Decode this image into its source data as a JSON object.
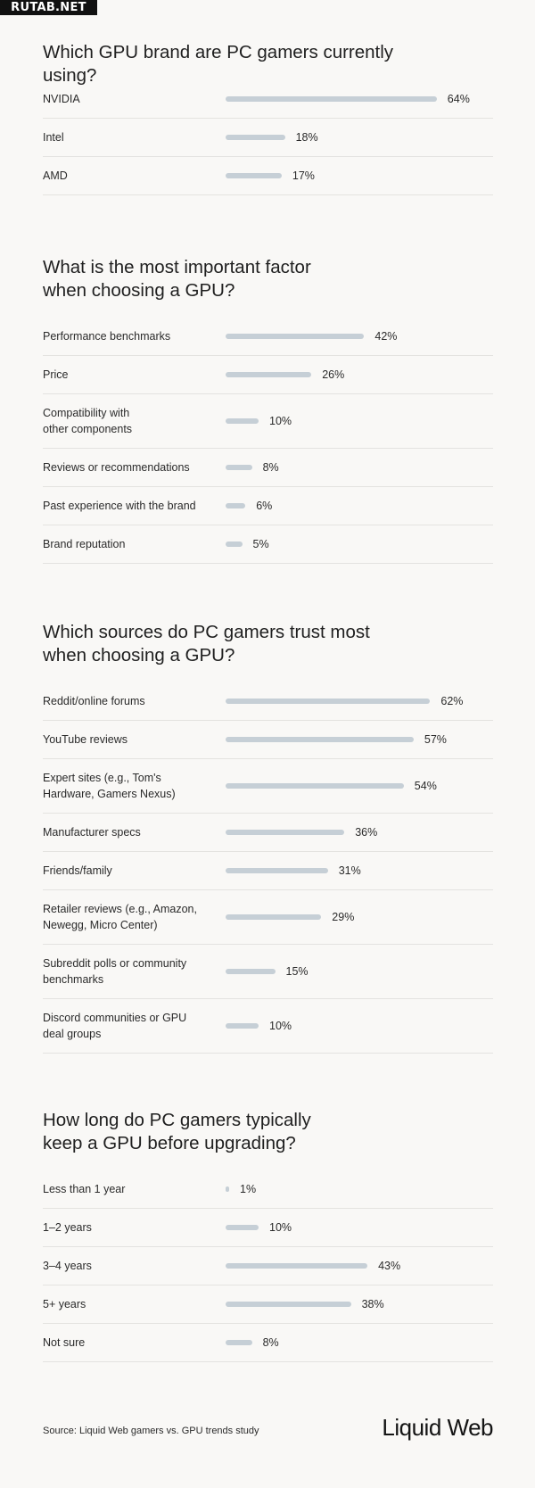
{
  "watermark": "RUTAB.NET",
  "chart_data": [
    {
      "type": "bar",
      "title": "Which GPU brand are PC gamers currently using?",
      "categories": [
        "NVIDIA",
        "Intel",
        "AMD"
      ],
      "values": [
        64,
        18,
        17
      ],
      "value_labels": [
        "64%",
        "18%",
        "17%"
      ],
      "unit": "%"
    },
    {
      "type": "bar",
      "title": "What is the most important factor\nwhen choosing a GPU?",
      "categories": [
        "Performance benchmarks",
        "Price",
        "Compatibility with\nother components",
        "Reviews or recommendations",
        "Past experience with the brand",
        "Brand reputation"
      ],
      "values": [
        42,
        26,
        10,
        8,
        6,
        5
      ],
      "value_labels": [
        "42%",
        "26%",
        "10%",
        "8%",
        "6%",
        "5%"
      ],
      "unit": "%"
    },
    {
      "type": "bar",
      "title": "Which sources do PC gamers trust most\nwhen choosing a GPU?",
      "categories": [
        "Reddit/online forums",
        "YouTube reviews",
        "Expert sites (e.g., Tom's\nHardware, Gamers Nexus)",
        "Manufacturer specs",
        "Friends/family",
        "Retailer reviews (e.g., Amazon,\nNewegg, Micro Center)",
        "Subreddit polls or community\nbenchmarks",
        "Discord communities or GPU\ndeal groups"
      ],
      "values": [
        62,
        57,
        54,
        36,
        31,
        29,
        15,
        10
      ],
      "value_labels": [
        "62%",
        "57%",
        "54%",
        "36%",
        "31%",
        "29%",
        "15%",
        "10%"
      ],
      "unit": "%"
    },
    {
      "type": "bar",
      "title": "How long do PC gamers typically\nkeep a GPU before upgrading?",
      "categories": [
        "Less than 1 year",
        "1–2 years",
        "3–4 years",
        "5+ years",
        "Not sure"
      ],
      "values": [
        1,
        10,
        43,
        38,
        8
      ],
      "value_labels": [
        "1%",
        "10%",
        "43%",
        "38%",
        "8%"
      ],
      "unit": "%"
    }
  ],
  "footer": {
    "source": "Source: Liquid Web gamers vs. GPU trends study",
    "logo": "Liquid Web"
  },
  "colors": {
    "background": "#f9f8f6",
    "bar": "#c6cfd6",
    "divider": "#e4e3e0",
    "text": "#1c1c1c"
  }
}
